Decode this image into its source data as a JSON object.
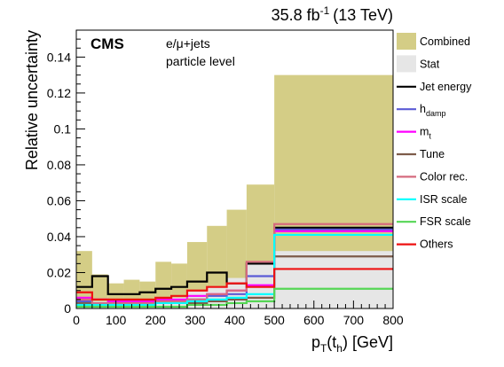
{
  "header": {
    "lumi_main": "35.8 fb",
    "lumi_exp": "-1",
    "lumi_energy": "(13 TeV)"
  },
  "annotations": {
    "experiment": "CMS",
    "channel": "e/μ+jets",
    "level": "particle level"
  },
  "chart_data": {
    "type": "histogram",
    "title": "",
    "xlabel_main": "p",
    "xlabel_sub_t": "T",
    "xlabel_open": "(t",
    "xlabel_sub_h": "h",
    "xlabel_close": ") [GeV]",
    "ylabel": "Relative uncertainty",
    "xlim": [
      0,
      800
    ],
    "ylim": [
      0,
      0.155
    ],
    "x_ticks": [
      0,
      100,
      200,
      300,
      400,
      500,
      600,
      700,
      800
    ],
    "y_ticks": [
      0,
      0.02,
      0.04,
      0.06,
      0.08,
      0.1,
      0.12,
      0.14
    ],
    "bin_edges": [
      0,
      40,
      80,
      120,
      160,
      200,
      240,
      280,
      330,
      380,
      430,
      500,
      800
    ],
    "grid": false,
    "legend_position": "right",
    "filled_series": [
      {
        "name": "Combined",
        "color": "#d4cd86",
        "values": [
          0.032,
          0.019,
          0.014,
          0.016,
          0.015,
          0.026,
          0.025,
          0.037,
          0.046,
          0.055,
          0.069,
          0.13
        ]
      },
      {
        "name": "Stat",
        "color": "#e6e6e6",
        "values": [
          0.006,
          0.004,
          0.004,
          0.004,
          0.005,
          0.006,
          0.006,
          0.01,
          0.012,
          0.017,
          0.026,
          0.032
        ]
      }
    ],
    "line_series": [
      {
        "name": "Jet energy",
        "label_main": "Jet energy",
        "label_sub": "",
        "color": "#000000",
        "values": [
          0.012,
          0.018,
          0.008,
          0.008,
          0.009,
          0.011,
          0.012,
          0.015,
          0.02,
          0.014,
          0.025,
          0.045
        ]
      },
      {
        "name": "h_damp",
        "label_main": "h",
        "label_sub": "damp",
        "color": "#5b5bd6",
        "values": [
          0.004,
          0.003,
          0.003,
          0.003,
          0.004,
          0.004,
          0.004,
          0.005,
          0.007,
          0.008,
          0.018,
          0.044
        ]
      },
      {
        "name": "m_t",
        "label_main": "m",
        "label_sub": "t",
        "color": "#ff00ff",
        "values": [
          0.006,
          0.005,
          0.004,
          0.004,
          0.004,
          0.005,
          0.005,
          0.007,
          0.008,
          0.01,
          0.013,
          0.043
        ]
      },
      {
        "name": "Tune",
        "label_main": "Tune",
        "label_sub": "",
        "color": "#7d5c4a",
        "values": [
          0.003,
          0.002,
          0.002,
          0.002,
          0.002,
          0.003,
          0.003,
          0.003,
          0.004,
          0.005,
          0.006,
          0.029
        ]
      },
      {
        "name": "Color rec.",
        "label_main": "Color rec.",
        "label_sub": "",
        "color": "#d56b7e",
        "values": [
          0.005,
          0.003,
          0.003,
          0.003,
          0.003,
          0.004,
          0.004,
          0.005,
          0.008,
          0.01,
          0.026,
          0.047
        ]
      },
      {
        "name": "ISR scale",
        "label_main": "ISR scale",
        "label_sub": "",
        "color": "#00ffff",
        "values": [
          0.002,
          0.002,
          0.002,
          0.002,
          0.002,
          0.003,
          0.003,
          0.004,
          0.005,
          0.006,
          0.008,
          0.041
        ]
      },
      {
        "name": "FSR scale",
        "label_main": "FSR scale",
        "label_sub": "",
        "color": "#55d655",
        "values": [
          0.001,
          0.001,
          0.001,
          0.001,
          0.001,
          0.001,
          0.001,
          0.002,
          0.002,
          0.003,
          0.004,
          0.011
        ]
      },
      {
        "name": "Others",
        "label_main": "Others",
        "label_sub": "",
        "color": "#ee1111",
        "values": [
          0.009,
          0.005,
          0.005,
          0.005,
          0.005,
          0.006,
          0.007,
          0.01,
          0.012,
          0.014,
          0.012,
          0.022
        ]
      }
    ]
  }
}
